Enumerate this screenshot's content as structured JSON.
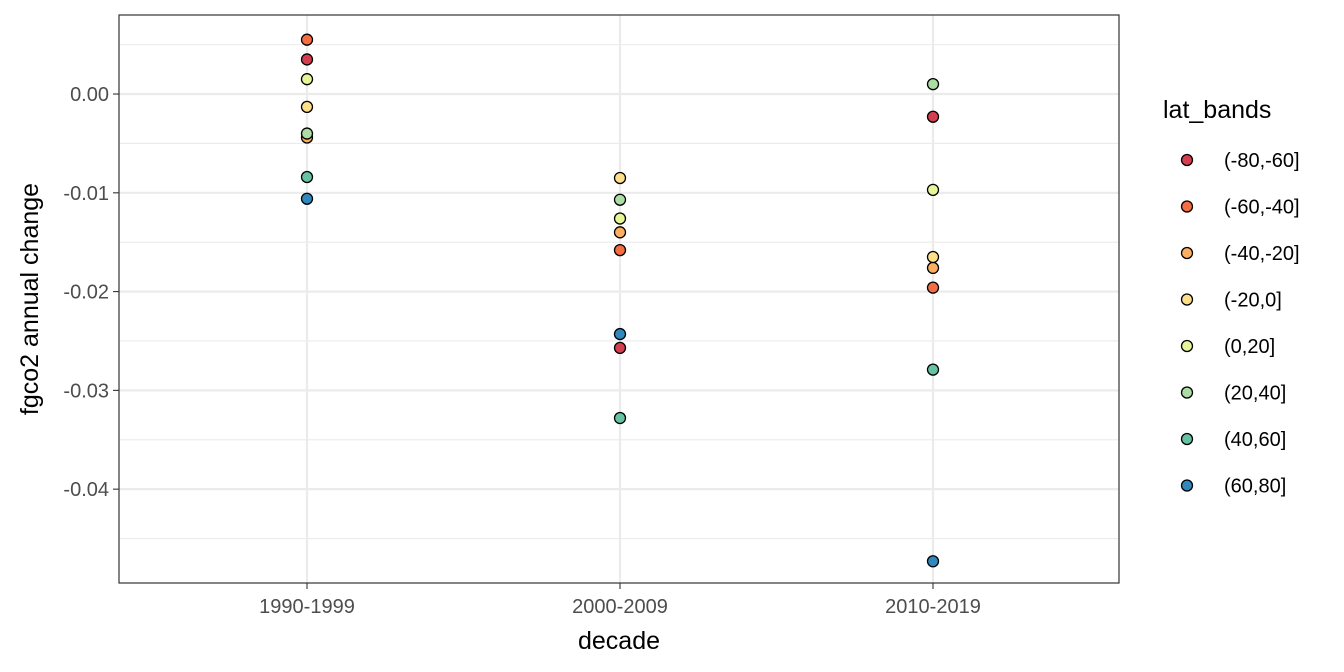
{
  "chart_data": {
    "type": "scatter",
    "title": "",
    "xlabel": "decade",
    "ylabel": "fgco2 annual change",
    "categories": [
      "1990-1999",
      "2000-2009",
      "2010-2019"
    ],
    "ylim": [
      -0.0495,
      0.008
    ],
    "yticks": [
      0.0,
      -0.01,
      -0.02,
      -0.03,
      -0.04
    ],
    "ytick_labels": [
      "0.00",
      "-0.01",
      "-0.02",
      "-0.03",
      "-0.04"
    ],
    "legend_title": "lat_bands",
    "legend_position": "right",
    "series": [
      {
        "name": "(-80,-60]",
        "color": "#d53e4f",
        "values": [
          0.0035,
          -0.0257,
          -0.0023
        ]
      },
      {
        "name": "(-60,-40]",
        "color": "#f46d43",
        "values": [
          0.0055,
          -0.0158,
          -0.0196
        ]
      },
      {
        "name": "(-40,-20]",
        "color": "#fdae61",
        "values": [
          -0.0044,
          -0.014,
          -0.0176
        ]
      },
      {
        "name": "(-20,0]",
        "color": "#fee08b",
        "values": [
          -0.0013,
          -0.0085,
          -0.0165
        ]
      },
      {
        "name": "(0,20]",
        "color": "#e6f598",
        "values": [
          0.0015,
          -0.0126,
          -0.0097
        ]
      },
      {
        "name": "(20,40]",
        "color": "#abdda4",
        "values": [
          -0.004,
          -0.0107,
          0.001
        ]
      },
      {
        "name": "(40,60]",
        "color": "#66c2a5",
        "values": [
          -0.0084,
          -0.0328,
          -0.0279
        ]
      },
      {
        "name": "(60,80]",
        "color": "#3288bd",
        "values": [
          -0.0106,
          -0.0243,
          -0.0473
        ]
      }
    ]
  }
}
